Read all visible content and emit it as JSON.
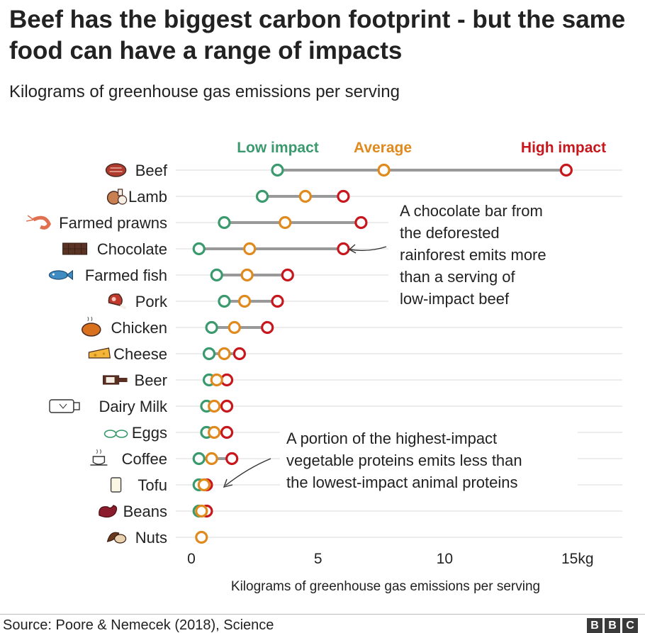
{
  "header": {
    "title": "Beef has the biggest carbon footprint - but the same food can have a range of impacts",
    "subtitle": "Kilograms of greenhouse gas emissions per serving"
  },
  "footer": {
    "source": "Source: Poore & Nemecek (2018), Science",
    "logo": [
      "B",
      "B",
      "C"
    ]
  },
  "chart_data": {
    "type": "dot-range",
    "xlabel": "Kilograms of greenhouse gas emissions per serving",
    "xlim": [
      0,
      15
    ],
    "xticks": [
      "0",
      "5",
      "10",
      "15kg"
    ],
    "grid": true,
    "legend": [
      {
        "key": "low",
        "label": "Low impact",
        "color": "#3a9a6e"
      },
      {
        "key": "avg",
        "label": "Average",
        "color": "#e08a1e"
      },
      {
        "key": "high",
        "label": "High impact",
        "color": "#c8161d"
      }
    ],
    "categories": [
      "Beef",
      "Lamb",
      "Farmed prawns",
      "Chocolate",
      "Farmed fish",
      "Pork",
      "Chicken",
      "Cheese",
      "Beer",
      "Dairy Milk",
      "Eggs",
      "Coffee",
      "Tofu",
      "Beans",
      "Nuts"
    ],
    "icons": [
      "steak-icon",
      "lamb-icon",
      "prawn-icon",
      "chocolate-bar-icon",
      "fish-icon",
      "ham-icon",
      "roast-chicken-icon",
      "cheese-icon",
      "beer-bottle-icon",
      "milk-carton-icon",
      "eggs-icon",
      "coffee-cup-icon",
      "tofu-icon",
      "beans-icon",
      "nuts-icon"
    ],
    "series": [
      {
        "name": "Low impact",
        "values": [
          3.4,
          2.8,
          1.3,
          0.3,
          1.0,
          1.3,
          0.8,
          0.7,
          0.7,
          0.6,
          0.6,
          0.3,
          0.3,
          0.3,
          null
        ]
      },
      {
        "name": "Average",
        "values": [
          7.6,
          4.5,
          3.7,
          2.3,
          2.2,
          2.1,
          1.7,
          1.3,
          1.0,
          0.9,
          0.9,
          0.8,
          0.5,
          0.4,
          0.4
        ]
      },
      {
        "name": "High impact",
        "values": [
          14.8,
          6.0,
          6.7,
          6.0,
          3.8,
          3.4,
          3.0,
          1.9,
          1.4,
          1.4,
          1.4,
          1.6,
          0.6,
          0.6,
          null
        ]
      }
    ],
    "annotations": [
      {
        "text_lines": [
          "A chocolate bar from",
          "the deforested",
          "rainforest emits more",
          "than a serving of",
          "low-impact beef"
        ],
        "points_to": "Chocolate"
      },
      {
        "text_lines": [
          "A portion of the highest-impact",
          "vegetable proteins emits less than",
          "the lowest-impact animal proteins"
        ],
        "points_to": "Tofu"
      }
    ]
  }
}
